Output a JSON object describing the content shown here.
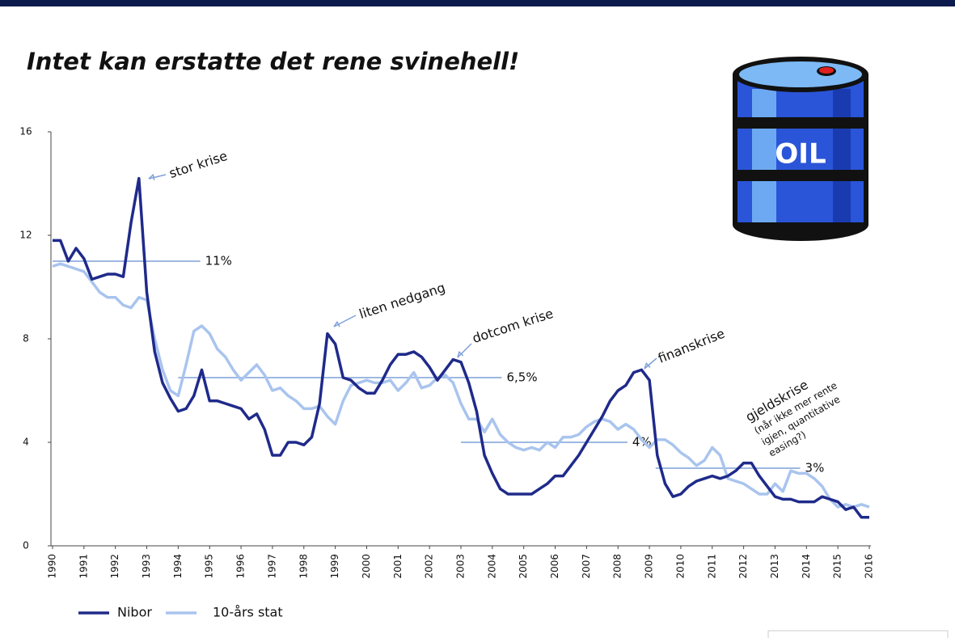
{
  "chart_data": {
    "type": "line",
    "title": "Intet kan erstatte det rene svinehell!",
    "barrel_label": "OIL",
    "x": [
      1990,
      1990.25,
      1990.5,
      1990.75,
      1991,
      1991.25,
      1991.5,
      1991.75,
      1992,
      1992.25,
      1992.5,
      1992.75,
      1993,
      1993.25,
      1993.5,
      1993.75,
      1994,
      1994.25,
      1994.5,
      1994.75,
      1995,
      1995.25,
      1995.5,
      1995.75,
      1996,
      1996.25,
      1996.5,
      1996.75,
      1997,
      1997.25,
      1997.5,
      1997.75,
      1998,
      1998.25,
      1998.5,
      1998.75,
      1999,
      1999.25,
      1999.5,
      1999.75,
      2000,
      2000.25,
      2000.5,
      2000.75,
      2001,
      2001.25,
      2001.5,
      2001.75,
      2002,
      2002.25,
      2002.5,
      2002.75,
      2003,
      2003.25,
      2003.5,
      2003.75,
      2004,
      2004.25,
      2004.5,
      2004.75,
      2005,
      2005.25,
      2005.5,
      2005.75,
      2006,
      2006.25,
      2006.5,
      2006.75,
      2007,
      2007.25,
      2007.5,
      2007.75,
      2008,
      2008.25,
      2008.5,
      2008.75,
      2009,
      2009.25,
      2009.5,
      2009.75,
      2010,
      2010.25,
      2010.5,
      2010.75,
      2011,
      2011.25,
      2011.5,
      2011.75,
      2012,
      2012.25,
      2012.5,
      2012.75,
      2013,
      2013.25,
      2013.5,
      2013.75,
      2014,
      2014.25,
      2014.5,
      2014.75,
      2015,
      2015.25,
      2015.5,
      2015.75,
      2016
    ],
    "series": [
      {
        "name": "Nibor",
        "color": "#1f2a8a",
        "width": 3.5,
        "values": [
          11.8,
          11.8,
          11.0,
          11.5,
          11.1,
          10.3,
          10.4,
          10.5,
          10.5,
          10.4,
          12.5,
          14.2,
          9.8,
          7.5,
          6.3,
          5.7,
          5.2,
          5.3,
          5.8,
          6.8,
          5.6,
          5.6,
          5.5,
          5.4,
          5.3,
          4.9,
          5.1,
          4.5,
          3.5,
          3.5,
          4.0,
          4.0,
          3.9,
          4.2,
          5.5,
          8.2,
          7.8,
          6.5,
          6.4,
          6.1,
          5.9,
          5.9,
          6.4,
          7.0,
          7.4,
          7.4,
          7.5,
          7.3,
          6.9,
          6.4,
          6.8,
          7.2,
          7.1,
          6.3,
          5.2,
          3.5,
          2.8,
          2.2,
          2.0,
          2.0,
          2.0,
          2.0,
          2.2,
          2.4,
          2.7,
          2.7,
          3.1,
          3.5,
          4.0,
          4.5,
          5.0,
          5.6,
          6.0,
          6.2,
          6.7,
          6.8,
          6.4,
          3.5,
          2.4,
          1.9,
          2.0,
          2.3,
          2.5,
          2.6,
          2.7,
          2.6,
          2.7,
          2.9,
          3.2,
          3.2,
          2.7,
          2.3,
          1.9,
          1.8,
          1.8,
          1.7,
          1.7,
          1.7,
          1.9,
          1.8,
          1.7,
          1.4,
          1.5,
          1.1,
          1.1
        ]
      },
      {
        "name": "10-års stat",
        "color": "#a9c4ee",
        "width": 3.5,
        "values": [
          10.8,
          10.9,
          10.8,
          10.7,
          10.6,
          10.2,
          9.8,
          9.6,
          9.6,
          9.3,
          9.2,
          9.6,
          9.5,
          8.0,
          6.8,
          6.0,
          5.8,
          7.0,
          8.3,
          8.5,
          8.2,
          7.6,
          7.3,
          6.8,
          6.4,
          6.7,
          7.0,
          6.6,
          6.0,
          6.1,
          5.8,
          5.6,
          5.3,
          5.3,
          5.4,
          5.0,
          4.7,
          5.6,
          6.2,
          6.3,
          6.4,
          6.3,
          6.3,
          6.4,
          6.0,
          6.3,
          6.7,
          6.1,
          6.2,
          6.5,
          6.6,
          6.3,
          5.5,
          4.9,
          4.9,
          4.4,
          4.9,
          4.3,
          4.0,
          3.8,
          3.7,
          3.8,
          3.7,
          4.0,
          3.8,
          4.2,
          4.2,
          4.3,
          4.6,
          4.8,
          4.9,
          4.8,
          4.5,
          4.7,
          4.5,
          4.1,
          3.8,
          4.1,
          4.1,
          3.9,
          3.6,
          3.4,
          3.1,
          3.3,
          3.8,
          3.5,
          2.6,
          2.5,
          2.4,
          2.2,
          2.0,
          2.0,
          2.4,
          2.1,
          2.9,
          2.8,
          2.8,
          2.6,
          2.3,
          1.8,
          1.5,
          1.6,
          1.5,
          1.6,
          1.5
        ]
      }
    ],
    "xlim": [
      1990,
      2016
    ],
    "xticks": [
      1990,
      1991,
      1992,
      1993,
      1994,
      1995,
      1996,
      1997,
      1998,
      1999,
      2000,
      2001,
      2002,
      2003,
      2004,
      2005,
      2006,
      2007,
      2008,
      2009,
      2010,
      2011,
      2012,
      2013,
      2014,
      2015,
      2016
    ],
    "ylim": [
      0,
      16
    ],
    "yticks": [
      0,
      4,
      8,
      12,
      16
    ],
    "reference_lines": [
      {
        "value": 11,
        "label": "11%",
        "x": [
          1990,
          1994.7
        ]
      },
      {
        "value": 6.5,
        "label": "6,5%",
        "x": [
          1994,
          2004.3
        ]
      },
      {
        "value": 4,
        "label": "4%",
        "x": [
          2003,
          2008.3
        ]
      },
      {
        "value": 3,
        "label": "3%",
        "x": [
          2009.2,
          2013.8
        ]
      }
    ],
    "annotations": [
      "stor krise",
      "liten nedgang",
      "dotcom krise",
      "finanskrise",
      "gjeldskrise"
    ],
    "annotation_note": [
      "(når ikke mer rente",
      "igjen, quantitative",
      "easing?)"
    ]
  }
}
